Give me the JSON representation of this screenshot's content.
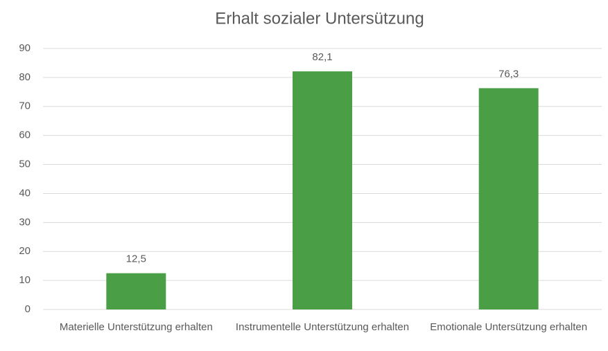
{
  "chart_data": {
    "type": "bar",
    "title": "Erhalt sozialer Untersützung",
    "categories": [
      "Materielle Unterstützung erhalten",
      "Instrumentelle Unterstützung erhalten",
      "Emotionale Untersützung erhalten"
    ],
    "values": [
      12.5,
      82.1,
      76.3
    ],
    "value_labels": [
      "12,5",
      "82,1",
      "76,3"
    ],
    "color": "#4a9e45",
    "ylim": [
      0,
      90
    ],
    "yticks": [
      0,
      10,
      20,
      30,
      40,
      50,
      60,
      70,
      80,
      90
    ],
    "grid": true
  }
}
